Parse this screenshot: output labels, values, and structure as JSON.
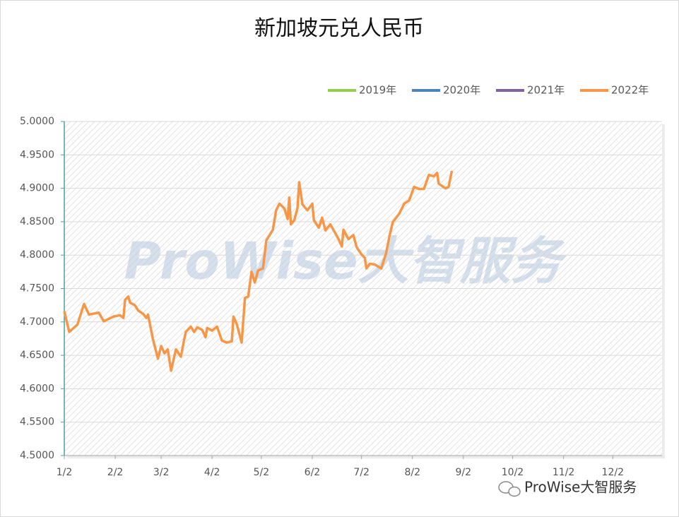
{
  "chart_data": {
    "type": "line",
    "title": "新加坡元兑人民币",
    "x": [
      0,
      3,
      8,
      12,
      15,
      21,
      24,
      30,
      34,
      36,
      37,
      39,
      40,
      43,
      45,
      48,
      50,
      51,
      54,
      57,
      59,
      61,
      63,
      65,
      68,
      71,
      73,
      74,
      77,
      79,
      81,
      84,
      86,
      87,
      90,
      93,
      96,
      99,
      102,
      103,
      105,
      108,
      110,
      112,
      114,
      116,
      118,
      121,
      123,
      127,
      129,
      131,
      134,
      136,
      137,
      138,
      140,
      142,
      143,
      145,
      148,
      151,
      152,
      155,
      157,
      159,
      162,
      165,
      167,
      169,
      170,
      173,
      176,
      178,
      181,
      183,
      184,
      186,
      189,
      193,
      196,
      198,
      200,
      204,
      207,
      210,
      213,
      216,
      219,
      222,
      225,
      227,
      228,
      232,
      234,
      236
    ],
    "series": [
      {
        "name": "2019年",
        "color": "#92d050",
        "values": [
          null,
          null,
          null,
          null,
          null,
          null,
          null,
          null,
          null,
          null,
          null,
          null,
          null,
          null,
          null,
          null,
          null,
          null,
          null,
          null,
          null,
          null,
          null,
          null,
          null,
          null,
          null,
          null,
          null,
          null,
          null,
          null,
          null,
          null,
          null,
          null,
          null,
          null,
          null,
          null,
          null,
          null,
          null,
          null,
          null,
          null,
          null,
          null,
          null,
          null,
          null,
          null,
          null,
          null,
          null,
          null,
          null,
          null,
          null,
          null,
          null,
          null,
          null,
          null,
          null,
          null,
          null,
          null,
          null,
          null,
          null,
          null,
          null,
          null,
          null,
          null,
          null,
          null,
          null,
          null,
          null,
          null,
          null,
          null,
          null,
          null,
          null,
          null,
          null,
          null,
          null,
          null,
          null,
          null,
          null,
          null
        ]
      },
      {
        "name": "2020年",
        "color": "#4f81bd",
        "values": [
          null,
          null,
          null,
          null,
          null,
          null,
          null,
          null,
          null,
          null,
          null,
          null,
          null,
          null,
          null,
          null,
          null,
          null,
          null,
          null,
          null,
          null,
          null,
          null,
          null,
          null,
          null,
          null,
          null,
          null,
          null,
          null,
          null,
          null,
          null,
          null,
          null,
          null,
          null,
          null,
          null,
          null,
          null,
          null,
          null,
          null,
          null,
          null,
          null,
          null,
          null,
          null,
          null,
          null,
          null,
          null,
          null,
          null,
          null,
          null,
          null,
          null,
          null,
          null,
          null,
          null,
          null,
          null,
          null,
          null,
          null,
          null,
          null,
          null,
          null,
          null,
          null,
          null,
          null,
          null,
          null,
          null,
          null,
          null,
          null,
          null,
          null,
          null,
          null,
          null,
          null,
          null,
          null,
          null,
          null,
          null
        ]
      },
      {
        "name": "2021年",
        "color": "#8064a2",
        "values": [
          null,
          null,
          null,
          null,
          null,
          null,
          null,
          null,
          null,
          null,
          null,
          null,
          null,
          null,
          null,
          null,
          null,
          null,
          null,
          null,
          null,
          null,
          null,
          null,
          null,
          null,
          null,
          null,
          null,
          null,
          null,
          null,
          null,
          null,
          null,
          null,
          null,
          null,
          null,
          null,
          null,
          null,
          null,
          null,
          null,
          null,
          null,
          null,
          null,
          null,
          null,
          null,
          null,
          null,
          null,
          null,
          null,
          null,
          null,
          null,
          null,
          null,
          null,
          null,
          null,
          null,
          null,
          null,
          null,
          null,
          null,
          null,
          null,
          null,
          null,
          null,
          null,
          null,
          null,
          null,
          null,
          null,
          null,
          null,
          null,
          null,
          null,
          null,
          null,
          null,
          null,
          null,
          null,
          null,
          null,
          null
        ]
      },
      {
        "name": "2022年",
        "color": "#f79646",
        "values": [
          4.716,
          4.685,
          4.696,
          4.727,
          4.711,
          4.714,
          4.701,
          4.708,
          4.71,
          4.706,
          4.733,
          4.738,
          4.729,
          4.725,
          4.717,
          4.712,
          4.706,
          4.711,
          4.674,
          4.645,
          4.664,
          4.653,
          4.659,
          4.627,
          4.659,
          4.648,
          4.674,
          4.685,
          4.693,
          4.685,
          4.692,
          4.688,
          4.677,
          4.691,
          4.687,
          4.693,
          4.672,
          4.669,
          4.671,
          4.708,
          4.697,
          4.669,
          4.736,
          4.738,
          4.775,
          4.759,
          4.777,
          4.78,
          4.822,
          4.838,
          4.867,
          4.877,
          4.87,
          4.854,
          4.886,
          4.846,
          4.852,
          4.87,
          4.909,
          4.876,
          4.867,
          4.877,
          4.852,
          4.841,
          4.856,
          4.837,
          4.846,
          4.833,
          4.824,
          4.813,
          4.838,
          4.824,
          4.83,
          4.812,
          4.801,
          4.796,
          4.78,
          4.787,
          4.786,
          4.78,
          4.803,
          4.828,
          4.849,
          4.862,
          4.877,
          4.882,
          4.902,
          4.899,
          4.899,
          4.92,
          4.918,
          4.923,
          4.907,
          4.9,
          4.902,
          4.926
        ]
      }
    ],
    "xlim": [
      0,
      364
    ],
    "xticks": [
      {
        "value": 0,
        "label": "1/2"
      },
      {
        "value": 31,
        "label": "2/2"
      },
      {
        "value": 59,
        "label": "3/2"
      },
      {
        "value": 90,
        "label": "4/2"
      },
      {
        "value": 120,
        "label": "5/2"
      },
      {
        "value": 151,
        "label": "6/2"
      },
      {
        "value": 181,
        "label": "7/2"
      },
      {
        "value": 212,
        "label": "8/2"
      },
      {
        "value": 243,
        "label": "9/2"
      },
      {
        "value": 273,
        "label": "10/2"
      },
      {
        "value": 304,
        "label": "11/2"
      },
      {
        "value": 334,
        "label": "12/2"
      }
    ],
    "ylim": [
      4.5,
      5.0
    ],
    "yticks": [
      {
        "value": 4.5,
        "label": "4.5000"
      },
      {
        "value": 4.55,
        "label": "4.5500"
      },
      {
        "value": 4.6,
        "label": "4.6000"
      },
      {
        "value": 4.65,
        "label": "4.6500"
      },
      {
        "value": 4.7,
        "label": "4.7000"
      },
      {
        "value": 4.75,
        "label": "4.7500"
      },
      {
        "value": 4.8,
        "label": "4.8000"
      },
      {
        "value": 4.85,
        "label": "4.8500"
      },
      {
        "value": 4.9,
        "label": "4.9000"
      },
      {
        "value": 4.95,
        "label": "4.9500"
      },
      {
        "value": 5.0,
        "label": "5.0000"
      }
    ],
    "grid": true,
    "legend": "top-right"
  },
  "watermark": "ProWise大智服务",
  "footer": "ProWise大智服务"
}
